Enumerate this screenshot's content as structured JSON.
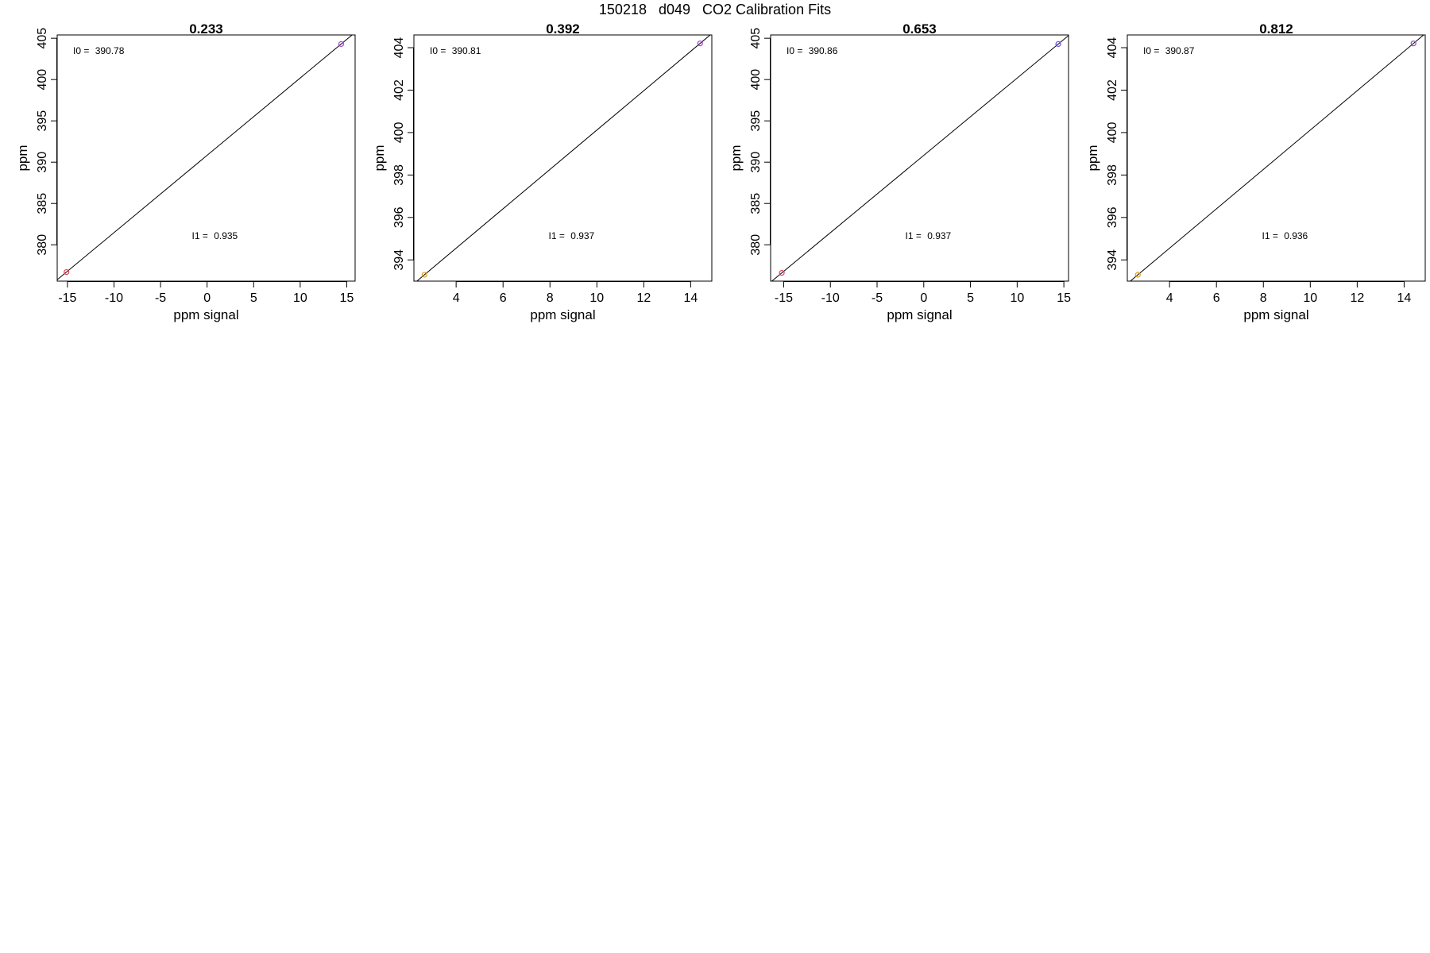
{
  "figure": {
    "title": "150218   d049   CO2 Calibration Fits"
  },
  "chart_data": [
    {
      "type": "scatter",
      "title": "0.233",
      "xlabel": "ppm signal",
      "ylabel": "ppm",
      "xlim": [
        -16.1,
        15.9
      ],
      "ylim": [
        375.6,
        405.4
      ],
      "xticks": [
        -15,
        -10,
        -5,
        0,
        5,
        10,
        15
      ],
      "xtick_labels": [
        "-15",
        "-10",
        "-5",
        "0",
        "5",
        "10",
        "15"
      ],
      "yticks": [
        380,
        385,
        390,
        395,
        400,
        405
      ],
      "ytick_labels": [
        "380",
        "385",
        "390",
        "395",
        "400",
        "405"
      ],
      "points": [
        {
          "x": -15.1,
          "y": 376.7,
          "color": "#e0405a"
        },
        {
          "x": 14.4,
          "y": 404.3,
          "color": "#a040d8"
        }
      ],
      "fit_line": {
        "intercept": 390.78,
        "slope": 0.935
      },
      "annotations": [
        {
          "label": "I0 = ",
          "value": "390.78",
          "pos": "top-left"
        },
        {
          "label": "I1 = ",
          "value": "0.935",
          "pos": "bottom-center"
        }
      ],
      "grid": false
    },
    {
      "type": "scatter",
      "title": "0.392",
      "xlabel": "ppm signal",
      "ylabel": "ppm",
      "xlim": [
        2.2,
        14.9
      ],
      "ylim": [
        393.0,
        404.6
      ],
      "xticks": [
        4,
        6,
        8,
        10,
        12,
        14
      ],
      "xtick_labels": [
        "4",
        "6",
        "8",
        "10",
        "12",
        "14"
      ],
      "yticks": [
        394,
        396,
        398,
        400,
        402,
        404
      ],
      "ytick_labels": [
        "394",
        "396",
        "398",
        "400",
        "402",
        "404"
      ],
      "points": [
        {
          "x": 2.65,
          "y": 393.3,
          "color": "#e0a020"
        },
        {
          "x": 14.4,
          "y": 404.2,
          "color": "#a040d8"
        }
      ],
      "fit_line": {
        "intercept": 390.81,
        "slope": 0.937
      },
      "annotations": [
        {
          "label": "I0 = ",
          "value": "390.81",
          "pos": "top-left"
        },
        {
          "label": "I1 = ",
          "value": "0.937",
          "pos": "bottom-center"
        }
      ],
      "grid": false
    },
    {
      "type": "scatter",
      "title": "0.653",
      "xlabel": "ppm signal",
      "ylabel": "ppm",
      "xlim": [
        -16.4,
        15.5
      ],
      "ylim": [
        375.6,
        405.4
      ],
      "xticks": [
        -15,
        -10,
        -5,
        0,
        5,
        10,
        15
      ],
      "xtick_labels": [
        "-15",
        "-10",
        "-5",
        "0",
        "5",
        "10",
        "15"
      ],
      "yticks": [
        380,
        385,
        390,
        395,
        400,
        405
      ],
      "ytick_labels": [
        "380",
        "385",
        "390",
        "395",
        "400",
        "405"
      ],
      "points": [
        {
          "x": -15.2,
          "y": 376.6,
          "color": "#e0405a"
        },
        {
          "x": 14.4,
          "y": 404.3,
          "color": "#6a50e0"
        }
      ],
      "fit_line": {
        "intercept": 390.86,
        "slope": 0.937
      },
      "annotations": [
        {
          "label": "I0 = ",
          "value": "390.86",
          "pos": "top-left"
        },
        {
          "label": "I1 = ",
          "value": "0.937",
          "pos": "bottom-center"
        }
      ],
      "grid": false
    },
    {
      "type": "scatter",
      "title": "0.812",
      "xlabel": "ppm signal",
      "ylabel": "ppm",
      "xlim": [
        2.2,
        14.9
      ],
      "ylim": [
        393.0,
        404.6
      ],
      "xticks": [
        4,
        6,
        8,
        10,
        12,
        14
      ],
      "xtick_labels": [
        "4",
        "6",
        "8",
        "10",
        "12",
        "14"
      ],
      "yticks": [
        394,
        396,
        398,
        400,
        402,
        404
      ],
      "ytick_labels": [
        "394",
        "396",
        "398",
        "400",
        "402",
        "404"
      ],
      "points": [
        {
          "x": 2.65,
          "y": 393.3,
          "color": "#e0a020"
        },
        {
          "x": 14.4,
          "y": 404.2,
          "color": "#a040d8"
        }
      ],
      "fit_line": {
        "intercept": 390.87,
        "slope": 0.936
      },
      "annotations": [
        {
          "label": "I0 = ",
          "value": "390.87",
          "pos": "top-left"
        },
        {
          "label": "I1 = ",
          "value": "0.936",
          "pos": "bottom-center"
        }
      ],
      "grid": false
    }
  ]
}
